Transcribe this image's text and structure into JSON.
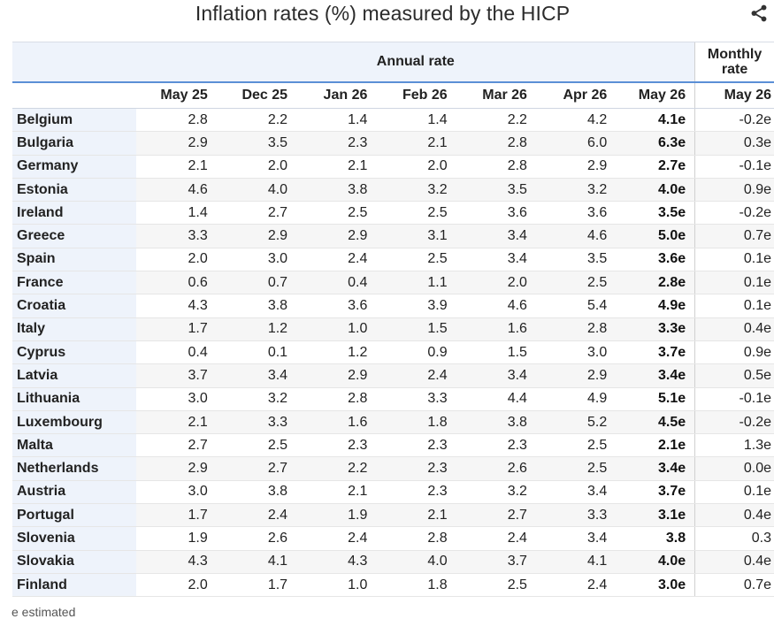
{
  "title": "Inflation rates (%) measured by the HICP",
  "annual_label": "Annual rate",
  "monthly_label_line1": "Monthly",
  "monthly_label_line2": "rate",
  "columns": [
    "May 25",
    "Dec 25",
    "Jan 26",
    "Feb 26",
    "Mar 26",
    "Apr 26",
    "May 26"
  ],
  "monthly_column": "May 26",
  "rows": [
    {
      "country": "Belgium",
      "values": [
        "2.8",
        "2.2",
        "1.4",
        "1.4",
        "2.2",
        "4.2",
        "4.1e"
      ],
      "monthly": "-0.2e"
    },
    {
      "country": "Bulgaria",
      "values": [
        "2.9",
        "3.5",
        "2.3",
        "2.1",
        "2.8",
        "6.0",
        "6.3e"
      ],
      "monthly": "0.3e"
    },
    {
      "country": "Germany",
      "values": [
        "2.1",
        "2.0",
        "2.1",
        "2.0",
        "2.8",
        "2.9",
        "2.7e"
      ],
      "monthly": "-0.1e"
    },
    {
      "country": "Estonia",
      "values": [
        "4.6",
        "4.0",
        "3.8",
        "3.2",
        "3.5",
        "3.2",
        "4.0e"
      ],
      "monthly": "0.9e"
    },
    {
      "country": "Ireland",
      "values": [
        "1.4",
        "2.7",
        "2.5",
        "2.5",
        "3.6",
        "3.6",
        "3.5e"
      ],
      "monthly": "-0.2e"
    },
    {
      "country": "Greece",
      "values": [
        "3.3",
        "2.9",
        "2.9",
        "3.1",
        "3.4",
        "4.6",
        "5.0e"
      ],
      "monthly": "0.7e"
    },
    {
      "country": "Spain",
      "values": [
        "2.0",
        "3.0",
        "2.4",
        "2.5",
        "3.4",
        "3.5",
        "3.6e"
      ],
      "monthly": "0.1e"
    },
    {
      "country": "France",
      "values": [
        "0.6",
        "0.7",
        "0.4",
        "1.1",
        "2.0",
        "2.5",
        "2.8e"
      ],
      "monthly": "0.1e"
    },
    {
      "country": "Croatia",
      "values": [
        "4.3",
        "3.8",
        "3.6",
        "3.9",
        "4.6",
        "5.4",
        "4.9e"
      ],
      "monthly": "0.1e"
    },
    {
      "country": "Italy",
      "values": [
        "1.7",
        "1.2",
        "1.0",
        "1.5",
        "1.6",
        "2.8",
        "3.3e"
      ],
      "monthly": "0.4e"
    },
    {
      "country": "Cyprus",
      "values": [
        "0.4",
        "0.1",
        "1.2",
        "0.9",
        "1.5",
        "3.0",
        "3.7e"
      ],
      "monthly": "0.9e"
    },
    {
      "country": "Latvia",
      "values": [
        "3.7",
        "3.4",
        "2.9",
        "2.4",
        "3.4",
        "2.9",
        "3.4e"
      ],
      "monthly": "0.5e"
    },
    {
      "country": "Lithuania",
      "values": [
        "3.0",
        "3.2",
        "2.8",
        "3.3",
        "4.4",
        "4.9",
        "5.1e"
      ],
      "monthly": "-0.1e"
    },
    {
      "country": "Luxembourg",
      "values": [
        "2.1",
        "3.3",
        "1.6",
        "1.8",
        "3.8",
        "5.2",
        "4.5e"
      ],
      "monthly": "-0.2e"
    },
    {
      "country": "Malta",
      "values": [
        "2.7",
        "2.5",
        "2.3",
        "2.3",
        "2.3",
        "2.5",
        "2.1e"
      ],
      "monthly": "1.3e"
    },
    {
      "country": "Netherlands",
      "values": [
        "2.9",
        "2.7",
        "2.2",
        "2.3",
        "2.6",
        "2.5",
        "3.4e"
      ],
      "monthly": "0.0e"
    },
    {
      "country": "Austria",
      "values": [
        "3.0",
        "3.8",
        "2.1",
        "2.3",
        "3.2",
        "3.4",
        "3.7e"
      ],
      "monthly": "0.1e"
    },
    {
      "country": "Portugal",
      "values": [
        "1.7",
        "2.4",
        "1.9",
        "2.1",
        "2.7",
        "3.3",
        "3.1e"
      ],
      "monthly": "0.4e"
    },
    {
      "country": "Slovenia",
      "values": [
        "1.9",
        "2.6",
        "2.4",
        "2.8",
        "2.4",
        "3.4",
        "3.8"
      ],
      "monthly": "0.3"
    },
    {
      "country": "Slovakia",
      "values": [
        "4.3",
        "4.1",
        "4.3",
        "4.0",
        "3.7",
        "4.1",
        "4.0e"
      ],
      "monthly": "0.4e"
    },
    {
      "country": "Finland",
      "values": [
        "2.0",
        "1.7",
        "1.0",
        "1.8",
        "2.5",
        "2.4",
        "3.0e"
      ],
      "monthly": "0.7e"
    }
  ],
  "footnote": "e estimated",
  "icons": {
    "share": "share-icon"
  },
  "colors": {
    "header_band": "#eef3fb",
    "accent_line": "#5b8fd6",
    "stripe": "#f6f6f6"
  }
}
